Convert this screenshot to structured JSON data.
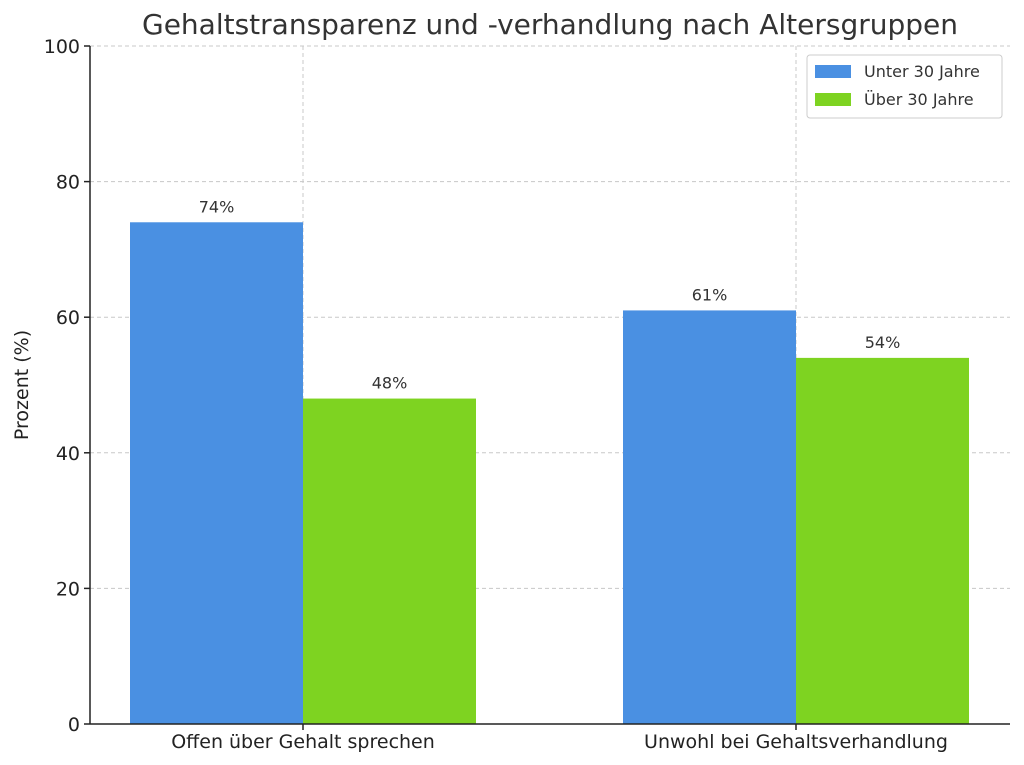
{
  "chart_data": {
    "type": "bar",
    "title": "Gehaltstransparenz und -verhandlung nach Altersgruppen",
    "xlabel": "",
    "ylabel": "Prozent (%)",
    "ylim": [
      0,
      100
    ],
    "yticks": [
      0,
      20,
      40,
      60,
      80,
      100
    ],
    "grid": true,
    "legend_position": "top-right",
    "categories": [
      "Offen über Gehalt sprechen",
      "Unwohl bei Gehaltsverhandlung"
    ],
    "series": [
      {
        "name": "Unter 30 Jahre",
        "color": "#4a90e2",
        "values": [
          74,
          61
        ],
        "labels": [
          "74%",
          "61%"
        ]
      },
      {
        "name": "Über 30 Jahre",
        "color": "#7ed321",
        "values": [
          48,
          54
        ],
        "labels": [
          "48%",
          "54%"
        ]
      }
    ]
  }
}
